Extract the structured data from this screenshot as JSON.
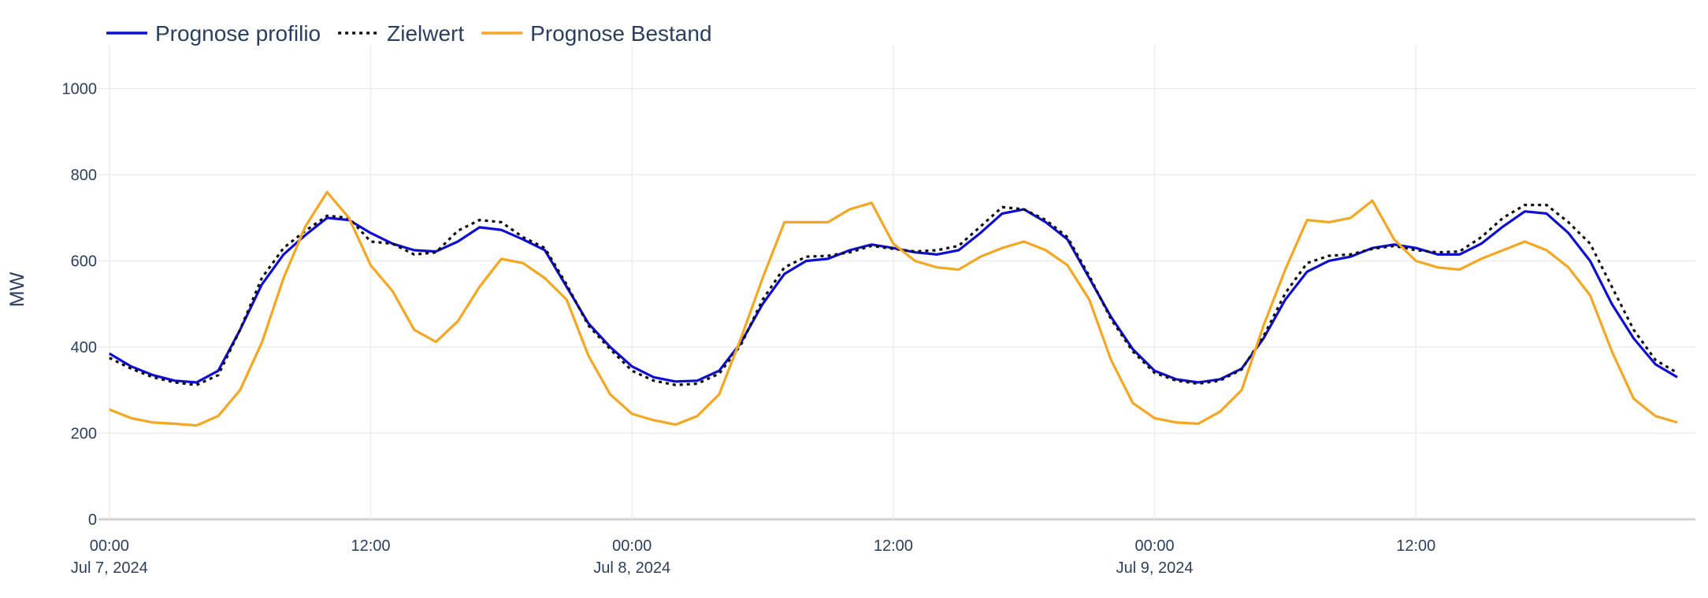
{
  "chart_data": {
    "type": "line",
    "ylabel": "MW",
    "x": [
      "2024-07-07 00:00",
      "2024-07-07 01:00",
      "2024-07-07 02:00",
      "2024-07-07 03:00",
      "2024-07-07 04:00",
      "2024-07-07 05:00",
      "2024-07-07 06:00",
      "2024-07-07 07:00",
      "2024-07-07 08:00",
      "2024-07-07 09:00",
      "2024-07-07 10:00",
      "2024-07-07 11:00",
      "2024-07-07 12:00",
      "2024-07-07 13:00",
      "2024-07-07 14:00",
      "2024-07-07 15:00",
      "2024-07-07 16:00",
      "2024-07-07 17:00",
      "2024-07-07 18:00",
      "2024-07-07 19:00",
      "2024-07-07 20:00",
      "2024-07-07 21:00",
      "2024-07-07 22:00",
      "2024-07-07 23:00",
      "2024-07-08 00:00",
      "2024-07-08 01:00",
      "2024-07-08 02:00",
      "2024-07-08 03:00",
      "2024-07-08 04:00",
      "2024-07-08 05:00",
      "2024-07-08 06:00",
      "2024-07-08 07:00",
      "2024-07-08 08:00",
      "2024-07-08 09:00",
      "2024-07-08 10:00",
      "2024-07-08 11:00",
      "2024-07-08 12:00",
      "2024-07-08 13:00",
      "2024-07-08 14:00",
      "2024-07-08 15:00",
      "2024-07-08 16:00",
      "2024-07-08 17:00",
      "2024-07-08 18:00",
      "2024-07-08 19:00",
      "2024-07-08 20:00",
      "2024-07-08 21:00",
      "2024-07-08 22:00",
      "2024-07-08 23:00",
      "2024-07-09 00:00",
      "2024-07-09 01:00",
      "2024-07-09 02:00",
      "2024-07-09 03:00",
      "2024-07-09 04:00",
      "2024-07-09 05:00",
      "2024-07-09 06:00",
      "2024-07-09 07:00",
      "2024-07-09 08:00",
      "2024-07-09 09:00",
      "2024-07-09 10:00",
      "2024-07-09 11:00",
      "2024-07-09 12:00",
      "2024-07-09 13:00",
      "2024-07-09 14:00",
      "2024-07-09 15:00",
      "2024-07-09 16:00",
      "2024-07-09 17:00",
      "2024-07-09 18:00",
      "2024-07-09 19:00",
      "2024-07-09 20:00",
      "2024-07-09 21:00",
      "2024-07-09 22:00",
      "2024-07-09 23:00",
      "2024-07-10 00:00"
    ],
    "series": [
      {
        "name": "Prognose profilio",
        "color": "#0f0fd2",
        "dash": "solid",
        "values": [
          385,
          355,
          335,
          322,
          318,
          345,
          440,
          545,
          615,
          660,
          700,
          695,
          665,
          640,
          625,
          622,
          645,
          678,
          672,
          650,
          625,
          540,
          455,
          400,
          355,
          330,
          320,
          322,
          345,
          410,
          500,
          570,
          600,
          605,
          625,
          638,
          630,
          620,
          615,
          625,
          665,
          710,
          720,
          690,
          650,
          560,
          470,
          395,
          345,
          325,
          318,
          325,
          350,
          420,
          510,
          575,
          600,
          610,
          630,
          638,
          630,
          615,
          615,
          640,
          680,
          715,
          710,
          665,
          600,
          500,
          420,
          360,
          330
        ]
      },
      {
        "name": "Zielwert",
        "color": "#111111",
        "dash": "dot",
        "values": [
          375,
          350,
          330,
          318,
          312,
          335,
          440,
          560,
          630,
          670,
          705,
          700,
          645,
          640,
          615,
          620,
          670,
          695,
          690,
          655,
          630,
          545,
          450,
          395,
          345,
          322,
          312,
          315,
          338,
          405,
          510,
          585,
          610,
          612,
          620,
          635,
          628,
          622,
          625,
          635,
          680,
          725,
          720,
          695,
          655,
          565,
          465,
          390,
          340,
          322,
          315,
          322,
          348,
          425,
          525,
          595,
          612,
          615,
          628,
          635,
          625,
          620,
          622,
          655,
          700,
          730,
          730,
          690,
          640,
          540,
          440,
          370,
          340
        ]
      },
      {
        "name": "Prognose Bestand",
        "color": "#f5a623",
        "dash": "solid",
        "values": [
          255,
          235,
          225,
          222,
          218,
          240,
          300,
          410,
          560,
          680,
          760,
          700,
          590,
          530,
          440,
          412,
          460,
          540,
          605,
          595,
          560,
          510,
          380,
          290,
          245,
          230,
          220,
          240,
          290,
          420,
          560,
          690,
          690,
          690,
          720,
          735,
          640,
          600,
          585,
          580,
          610,
          630,
          645,
          625,
          590,
          510,
          370,
          270,
          235,
          225,
          222,
          250,
          300,
          450,
          580,
          695,
          690,
          700,
          740,
          650,
          600,
          585,
          580,
          605,
          625,
          645,
          625,
          585,
          520,
          390,
          280,
          240,
          225
        ]
      }
    ],
    "xlim": [
      "2024-07-06 23:30",
      "2024-07-10 00:50"
    ],
    "xticks": [
      {
        "value": "2024-07-07 00:00",
        "label": "00:00\nJul 7, 2024"
      },
      {
        "value": "2024-07-07 12:00",
        "label": "12:00"
      },
      {
        "value": "2024-07-08 00:00",
        "label": "00:00\nJul 8, 2024"
      },
      {
        "value": "2024-07-08 12:00",
        "label": "12:00"
      },
      {
        "value": "2024-07-09 00:00",
        "label": "00:00\nJul 9, 2024"
      },
      {
        "value": "2024-07-09 12:00",
        "label": "12:00"
      }
    ],
    "ylim": [
      0,
      1100
    ],
    "yticks": [
      0,
      200,
      400,
      600,
      800,
      1000
    ],
    "grid": true,
    "legend": "top-left"
  }
}
